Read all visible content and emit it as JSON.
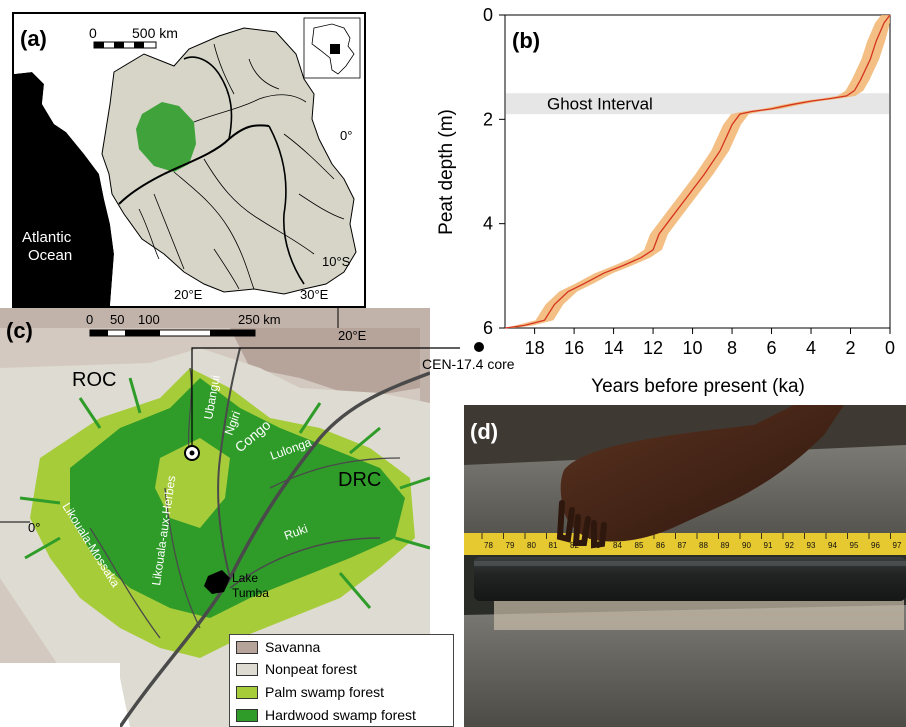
{
  "colors": {
    "ocean": "#000000",
    "basin": "#d6d5c8",
    "savanna": "#b6a49a",
    "nonpeat": "#dedcd2",
    "palm": "#a7cc3a",
    "hardwood": "#2f9c2a",
    "curve": "#d5341e",
    "band": "#f1b46e",
    "ghost": "#e6e6e6"
  },
  "panel_a": {
    "label": "(a)",
    "scale_zero": "0",
    "scale_max": "500 km",
    "ocean_label_1": "Atlantic",
    "ocean_label_2": "Ocean",
    "lat_0": "0°",
    "lat_10s": "10°S",
    "lon_20e": "20°E",
    "lon_30e": "30°E"
  },
  "panel_b": {
    "label": "(b)",
    "ghost_label": "Ghost Interval",
    "chart_data": {
      "type": "line",
      "xlabel": "Years before present (ka)",
      "ylabel": "Peat depth (m)",
      "xlim": [
        19.5,
        0
      ],
      "ylim": [
        0,
        6
      ],
      "x_ticks": [
        18,
        16,
        14,
        12,
        10,
        8,
        6,
        4,
        2,
        0
      ],
      "y_ticks": [
        0,
        2,
        4,
        6
      ],
      "ghost_interval": [
        1.5,
        1.9
      ],
      "series": [
        {
          "x": [
            19.5,
            18.5,
            17.5,
            17.0,
            16.3,
            15.5,
            14.5,
            13.5,
            12.6,
            12.0,
            11.7,
            11.0,
            10.2,
            9.4,
            8.6,
            8.0,
            7.6,
            7.0,
            6.0,
            5.0,
            4.0,
            3.0,
            2.2,
            1.8,
            1.5,
            1.0,
            0.7,
            0.3,
            0.0
          ],
          "y": [
            6.0,
            5.95,
            5.85,
            5.55,
            5.3,
            5.15,
            4.95,
            4.8,
            4.65,
            4.5,
            4.2,
            3.85,
            3.45,
            3.05,
            2.6,
            2.1,
            1.9,
            1.85,
            1.8,
            1.72,
            1.65,
            1.6,
            1.55,
            1.45,
            1.25,
            0.85,
            0.5,
            0.15,
            0.0
          ]
        }
      ]
    }
  },
  "panel_c": {
    "label": "(c)",
    "scale_zero": "0",
    "scale_50": "50",
    "scale_100": "100",
    "scale_250": "250 km",
    "lon_20e": "20°E",
    "lat_0": "0°",
    "core_label": "CEN-17.4 core",
    "roc": "ROC",
    "drc": "DRC",
    "rivers": {
      "ubangui": "Ubangui",
      "ngiri": "Ngiri",
      "congo": "Congo",
      "lulonga": "Lulonga",
      "likouala_aux_herbes": "Likouala-aux-Herbes",
      "likouala_mossaka": "Likouala-Mossaka",
      "ruki": "Ruki"
    },
    "lake_1": "Lake",
    "lake_2": "Tumba",
    "legend": [
      {
        "label": "Savanna",
        "color": "#b6a49a"
      },
      {
        "label": "Nonpeat forest",
        "color": "#dedcd2"
      },
      {
        "label": "Palm swamp forest",
        "color": "#a7cc3a"
      },
      {
        "label": "Hardwood swamp forest",
        "color": "#2f9c2a"
      }
    ]
  },
  "panel_d": {
    "label": "(d)",
    "tape_numbers": [
      "78",
      "79",
      "80",
      "81",
      "82",
      "83",
      "84",
      "85",
      "86",
      "87",
      "88",
      "89",
      "90",
      "91",
      "92",
      "93",
      "94",
      "95",
      "96",
      "97"
    ]
  }
}
